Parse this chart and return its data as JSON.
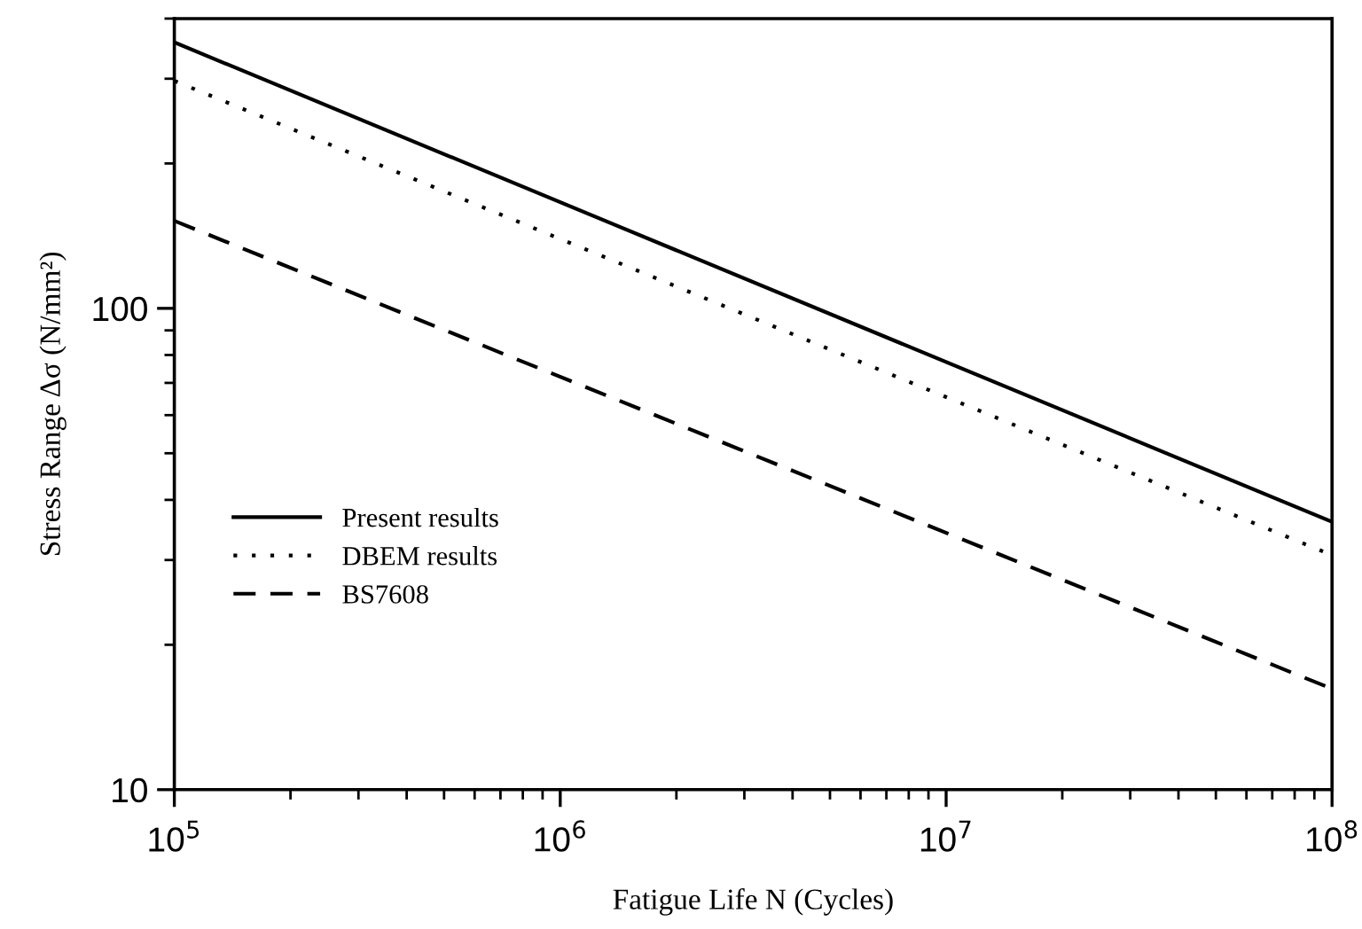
{
  "chart_data": {
    "type": "line",
    "xlabel": "Fatigue Life N (Cycles)",
    "ylabel": "Stress Range Δσ (N/mm²)",
    "x": [
      100000,
      100000000
    ],
    "series": [
      {
        "name": "Present results",
        "color": "#000000",
        "values": [
          357,
          36
        ],
        "line_style": "solid"
      },
      {
        "name": "DBEM results",
        "color": "#000000",
        "values": [
          297,
          30.7
        ],
        "line_style": "dotted"
      },
      {
        "name": "BS7608",
        "color": "#000000",
        "values": [
          152,
          16.2
        ],
        "line_style": "dashed"
      }
    ],
    "log": "xy",
    "xlim": [
      100000,
      100000000
    ],
    "ylim": [
      10,
      400
    ],
    "xticks": [
      {
        "value": 100000,
        "label": "10$^{5}$"
      },
      {
        "value": 1000000,
        "label": "10$^{6}$"
      },
      {
        "value": 10000000,
        "label": "10$^{7}$"
      },
      {
        "value": 100000000,
        "label": "10$^{8}$"
      }
    ],
    "yticks": [
      10,
      100
    ],
    "grid": false,
    "legend": "center left",
    "marker": "none"
  }
}
